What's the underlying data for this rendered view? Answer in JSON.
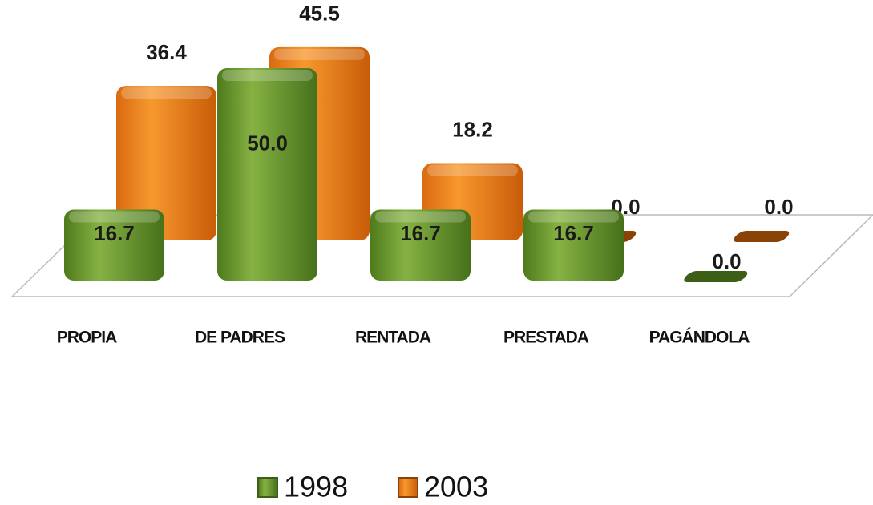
{
  "chart_data": {
    "type": "bar3d",
    "categories": [
      "PROPIA",
      "DE PADRES",
      "RENTADA",
      "PRESTADA",
      "PAGÁNDOLA"
    ],
    "series": [
      {
        "name": "1998",
        "color": "#6a9a2e",
        "values": [
          16.7,
          50,
          16.7,
          16.7,
          0
        ],
        "value_labels": [
          "16.7",
          "50.0",
          "16.7",
          "16.7",
          "0.0"
        ]
      },
      {
        "name": "2003",
        "color": "#f08220",
        "values": [
          36.4,
          45.5,
          18.2,
          0,
          0
        ],
        "value_labels": [
          "36.4",
          "45.5",
          "18.2",
          "0.0",
          "0.0"
        ]
      }
    ],
    "legend": "bottom"
  }
}
